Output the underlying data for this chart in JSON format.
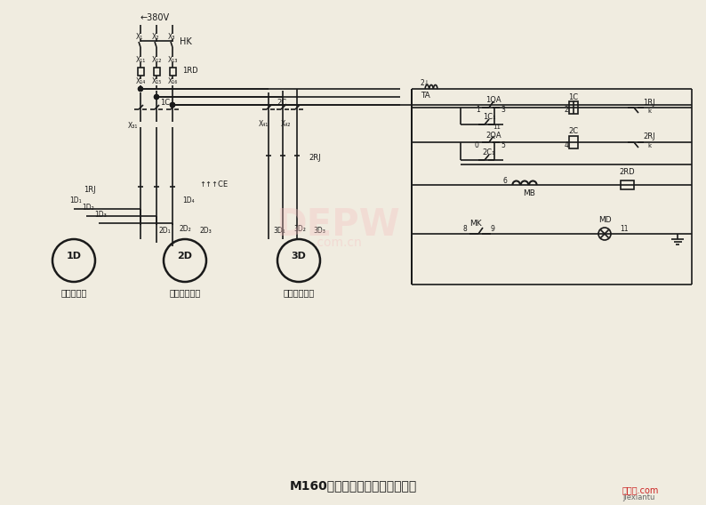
{
  "title": "M160型筒式平面磨床电气原理图",
  "background_color": "#f0ece0",
  "line_color": "#1a1a1a",
  "motor_labels": [
    "砂轮电动机",
    "冷却泥电动机",
    "工作台电动机"
  ],
  "motor_ids": [
    "1D",
    "2D",
    "3D"
  ],
  "watermark_text": "DEPW",
  "watermark_sub": ".com.cn",
  "site_label": "jiexiantu",
  "power_label": "←380V"
}
